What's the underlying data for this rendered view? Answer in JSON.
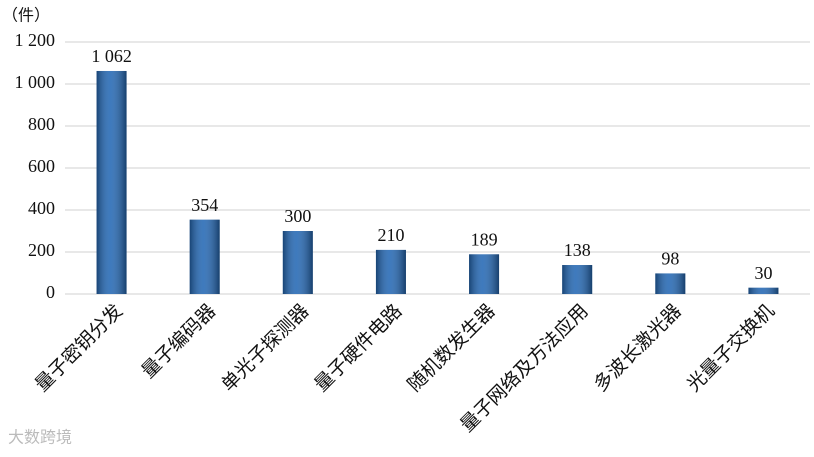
{
  "chart_data": {
    "type": "bar",
    "y_axis_label": "（件）",
    "categories": [
      "量子密钥分发",
      "量子编码器",
      "单光子探测器",
      "量子硬件电路",
      "随机数发生器",
      "量子网络及方法应用",
      "多波长激光器",
      "光量子交换机"
    ],
    "values": [
      1062,
      354,
      300,
      210,
      189,
      138,
      98,
      30
    ],
    "value_labels": [
      "1 062",
      "354",
      "300",
      "210",
      "189",
      "138",
      "98",
      "30"
    ],
    "color": "#2468b4",
    "ylim": [
      0,
      1200
    ],
    "yticks": [
      0,
      200,
      400,
      600,
      800,
      {
        "value": 1000,
        "label": "1 000"
      },
      {
        "value": 1200,
        "label": "1 200"
      }
    ],
    "grid": true,
    "watermark": "大数跨境"
  }
}
